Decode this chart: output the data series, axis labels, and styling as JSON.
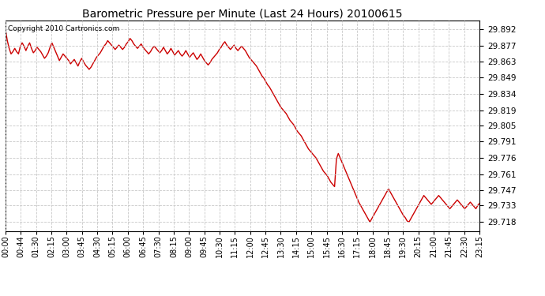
{
  "title": "Barometric Pressure per Minute (Last 24 Hours) 20100615",
  "copyright": "Copyright 2010 Cartronics.com",
  "line_color": "#cc0000",
  "background_color": "#ffffff",
  "grid_color": "#c8c8c8",
  "yticks": [
    29.718,
    29.733,
    29.747,
    29.761,
    29.776,
    29.791,
    29.805,
    29.819,
    29.834,
    29.849,
    29.863,
    29.877,
    29.892
  ],
  "ylim": [
    29.71,
    29.9
  ],
  "xtick_labels": [
    "00:00",
    "00:44",
    "01:30",
    "02:15",
    "03:00",
    "03:45",
    "04:30",
    "05:15",
    "06:00",
    "06:45",
    "07:30",
    "08:15",
    "09:00",
    "09:45",
    "10:30",
    "11:15",
    "12:00",
    "12:45",
    "13:30",
    "14:15",
    "15:00",
    "15:45",
    "16:30",
    "17:15",
    "18:00",
    "18:45",
    "19:30",
    "20:15",
    "21:00",
    "21:45",
    "22:30",
    "23:15"
  ],
  "pressure_data": [
    29.892,
    29.882,
    29.875,
    29.87,
    29.872,
    29.875,
    29.872,
    29.87,
    29.877,
    29.88,
    29.877,
    29.873,
    29.877,
    29.88,
    29.875,
    29.871,
    29.873,
    29.876,
    29.874,
    29.872,
    29.869,
    29.866,
    29.868,
    29.871,
    29.876,
    29.88,
    29.876,
    29.872,
    29.868,
    29.864,
    29.867,
    29.87,
    29.868,
    29.866,
    29.864,
    29.861,
    29.863,
    29.865,
    29.862,
    29.859,
    29.863,
    29.866,
    29.863,
    29.86,
    29.858,
    29.856,
    29.858,
    29.861,
    29.864,
    29.867,
    29.869,
    29.871,
    29.874,
    29.877,
    29.879,
    29.882,
    29.88,
    29.878,
    29.876,
    29.874,
    29.876,
    29.878,
    29.876,
    29.874,
    29.876,
    29.879,
    29.881,
    29.884,
    29.882,
    29.879,
    29.877,
    29.875,
    29.877,
    29.879,
    29.876,
    29.874,
    29.872,
    29.87,
    29.872,
    29.875,
    29.877,
    29.875,
    29.873,
    29.871,
    29.873,
    29.876,
    29.873,
    29.87,
    29.872,
    29.875,
    29.872,
    29.869,
    29.871,
    29.873,
    29.87,
    29.868,
    29.87,
    29.873,
    29.87,
    29.867,
    29.869,
    29.871,
    29.868,
    29.865,
    29.867,
    29.87,
    29.867,
    29.864,
    29.862,
    29.86,
    29.862,
    29.865,
    29.867,
    29.869,
    29.871,
    29.874,
    29.876,
    29.879,
    29.881,
    29.878,
    29.876,
    29.874,
    29.876,
    29.878,
    29.875,
    29.873,
    29.875,
    29.877,
    29.875,
    29.873,
    29.87,
    29.867,
    29.865,
    29.863,
    29.861,
    29.859,
    29.856,
    29.853,
    29.85,
    29.848,
    29.845,
    29.842,
    29.84,
    29.837,
    29.834,
    29.831,
    29.828,
    29.825,
    29.822,
    29.82,
    29.818,
    29.816,
    29.813,
    29.81,
    29.808,
    29.806,
    29.803,
    29.8,
    29.798,
    29.796,
    29.793,
    29.79,
    29.787,
    29.784,
    29.782,
    29.78,
    29.778,
    29.776,
    29.773,
    29.77,
    29.767,
    29.764,
    29.762,
    29.76,
    29.757,
    29.754,
    29.752,
    29.75,
    29.775,
    29.78,
    29.776,
    29.772,
    29.768,
    29.764,
    29.76,
    29.756,
    29.752,
    29.748,
    29.744,
    29.74,
    29.736,
    29.733,
    29.73,
    29.727,
    29.724,
    29.721,
    29.718,
    29.721,
    29.724,
    29.727,
    29.73,
    29.733,
    29.736,
    29.739,
    29.742,
    29.745,
    29.748,
    29.745,
    29.742,
    29.739,
    29.736,
    29.733,
    29.73,
    29.727,
    29.724,
    29.722,
    29.719,
    29.718,
    29.721,
    29.724,
    29.727,
    29.73,
    29.733,
    29.736,
    29.739,
    29.742,
    29.74,
    29.738,
    29.736,
    29.734,
    29.736,
    29.738,
    29.74,
    29.742,
    29.74,
    29.738,
    29.736,
    29.734,
    29.732,
    29.73,
    29.732,
    29.734,
    29.736,
    29.738,
    29.736,
    29.734,
    29.732,
    29.73,
    29.732,
    29.734,
    29.736,
    29.734,
    29.732,
    29.73,
    29.733,
    29.735
  ]
}
